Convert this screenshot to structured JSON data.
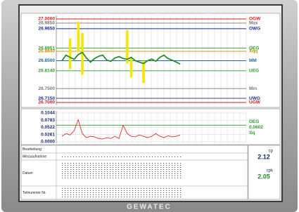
{
  "brand": "GEWATEC",
  "xbar_chart": {
    "ylim": [
      26.7,
      27.0
    ],
    "limits": [
      {
        "value": 27.0,
        "label": "27.0000",
        "name": "OGW",
        "color": "#d01818"
      },
      {
        "value": 26.985,
        "label": "26.9850",
        "name": "Max",
        "color": "#777777"
      },
      {
        "value": 26.965,
        "label": "26.9650",
        "name": "OWG",
        "color": "#1a2a9a"
      },
      {
        "value": 26.8951,
        "label": "26.8951",
        "name": "OEG",
        "color": "#2a9a2a"
      },
      {
        "value": 26.884,
        "label": "26.8840",
        "name": "Xqq",
        "color": "#c08a00"
      },
      {
        "value": 26.85,
        "label": "26.8500",
        "name": "MM",
        "color": "#1a6aa0"
      },
      {
        "value": 26.814,
        "label": "26.8140",
        "name": "UEG",
        "color": "#2a9a2a"
      },
      {
        "value": 26.75,
        "label": "26.7500",
        "name": "Min",
        "color": "#777777"
      },
      {
        "value": 26.715,
        "label": "26.7150",
        "name": "UWG",
        "color": "#1a2a9a"
      },
      {
        "value": 26.7,
        "label": "26.7000",
        "name": "UGW",
        "color": "#d01818"
      }
    ],
    "line_color": "#2a8a2a",
    "values": [
      26.85,
      26.87,
      26.862,
      26.855,
      26.872,
      26.88,
      26.86,
      26.845,
      26.858,
      26.866,
      26.87,
      26.852,
      26.848,
      26.86,
      26.865,
      26.858,
      26.855,
      26.862,
      26.85,
      26.845,
      26.84,
      26.85,
      26.856,
      26.848,
      26.862,
      26.87,
      26.858,
      26.852,
      26.845,
      26.838
    ],
    "range_color": "#f4e800",
    "ranges": [
      {
        "i": 2,
        "lo": 26.82,
        "hi": 26.93
      },
      {
        "i": 4,
        "lo": 26.88,
        "hi": 26.99
      },
      {
        "i": 5,
        "lo": 26.8,
        "hi": 26.95
      },
      {
        "i": 16,
        "lo": 26.84,
        "hi": 26.96
      },
      {
        "i": 17,
        "lo": 26.79,
        "hi": 26.86
      },
      {
        "i": 20,
        "lo": 26.77,
        "hi": 26.85
      }
    ]
  },
  "s_chart": {
    "ylim": [
      0,
      0.1044
    ],
    "yticks": [
      0.1044,
      0.0783,
      0.0522,
      0.0261,
      {
        "value": 0,
        "label": "0.0000"
      }
    ],
    "line_color": "#e03030",
    "limit": {
      "value": 0.0602,
      "name": "OEG",
      "color": "#2a9a2a"
    },
    "name": "Sq",
    "values": [
      0.02,
      0.03,
      0.025,
      0.04,
      0.08,
      0.03,
      0.015,
      0.02,
      0.018,
      0.012,
      0.01,
      0.015,
      0.012,
      0.02,
      0.012,
      0.06,
      0.03,
      0.02,
      0.018,
      0.025,
      0.02,
      0.015,
      0.02,
      0.03,
      0.02,
      0.015,
      0.022,
      0.018,
      0.02,
      0.025
    ]
  },
  "rows": [
    "Bearbeitung",
    "Messaufnahme",
    "Datum",
    "Teilnummer Nr."
  ],
  "stats": [
    {
      "label": "cp",
      "value": 2.12
    },
    {
      "label": "cpk",
      "value": 2.05
    }
  ]
}
